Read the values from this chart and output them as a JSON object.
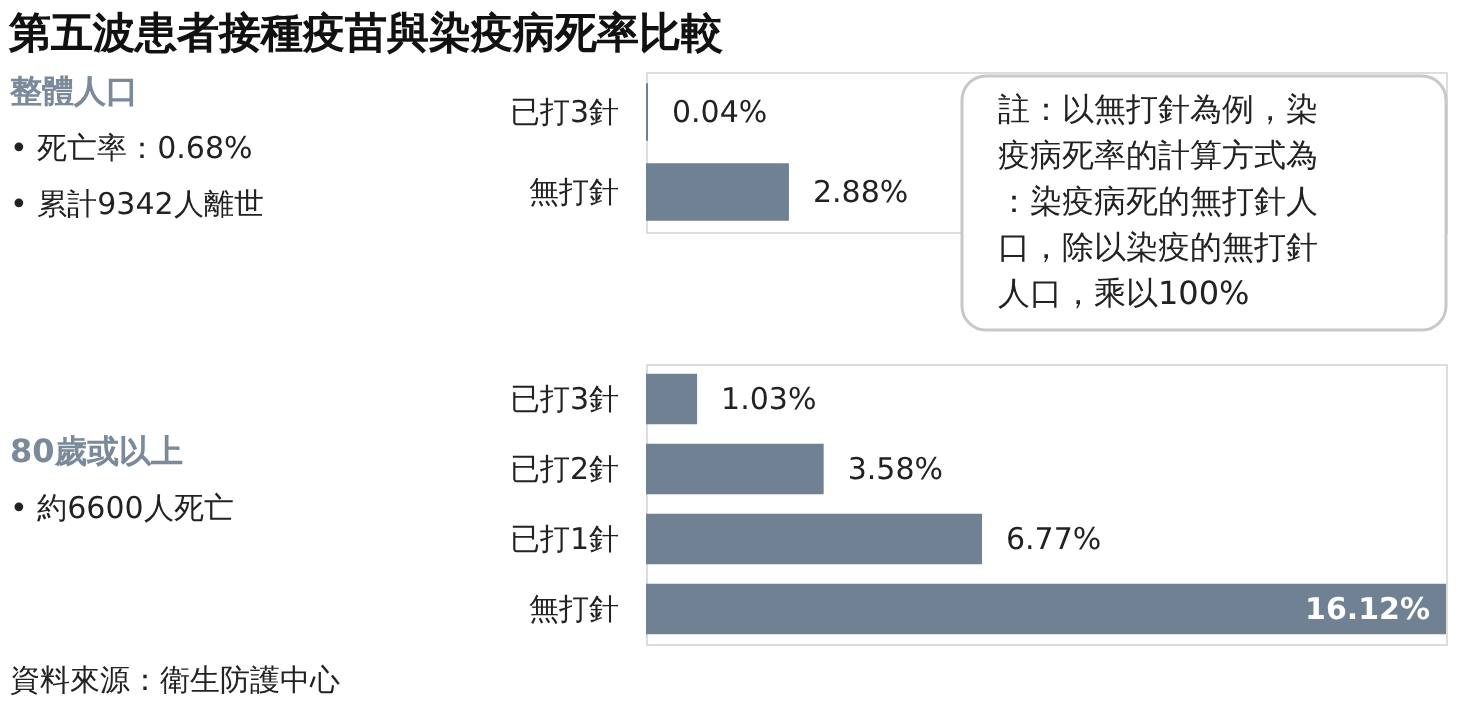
{
  "chart_data": [
    {
      "type": "bar",
      "orientation": "horizontal",
      "title": "第五波患者接種疫苗與染疫病死率比較",
      "categories": [
        "已打3針",
        "無打針"
      ],
      "values": [
        0.04,
        2.88
      ],
      "value_labels": [
        "0.04%",
        "2.88%"
      ],
      "color": "#6f8193",
      "grid": false,
      "tick_labels": "y",
      "annotations": [
        "整體人口",
        "• 死亡率：0.68%",
        "• 累計9342人離世",
        "註：以無打針為例，染疫病死率的計算方式為：染疫病死的無打針人口，除以染疫的無打針人口，乘以100%"
      ]
    },
    {
      "type": "bar",
      "orientation": "horizontal",
      "categories": [
        "已打3針",
        "已打2針",
        "已打1針",
        "無打針"
      ],
      "values": [
        1.03,
        3.58,
        6.77,
        16.12
      ],
      "value_labels": [
        "1.03%",
        "3.58%",
        "6.77%",
        "16.12%"
      ],
      "color": "#6f8193",
      "grid": false,
      "tick_labels": "y",
      "annotations": [
        "80歲或以上",
        "• 約6600人死亡",
        "資料來源：衛生防護中心"
      ]
    }
  ]
}
